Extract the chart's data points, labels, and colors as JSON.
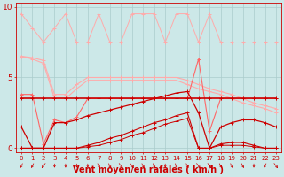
{
  "xlabel": "Vent moyen/en rafales ( km/h )",
  "hours": [
    0,
    1,
    2,
    3,
    4,
    5,
    6,
    7,
    8,
    9,
    10,
    11,
    12,
    13,
    14,
    15,
    16,
    17,
    18,
    19,
    20,
    21,
    22,
    23
  ],
  "bg_color": "#cce8e8",
  "grid_color": "#aacccc",
  "dark_red": "#cc0000",
  "light_red": "#ff6666",
  "pink_red": "#ffaaaa",
  "ylim": [
    -0.3,
    10.3
  ],
  "yticks": [
    0,
    5,
    10
  ],
  "series": [
    {
      "y": [
        6.5,
        6.4,
        6.2,
        3.8,
        3.8,
        4.5,
        5.0,
        5.0,
        5.0,
        5.0,
        5.0,
        5.0,
        5.0,
        5.0,
        5.0,
        4.8,
        4.5,
        4.2,
        4.0,
        3.8,
        3.5,
        3.2,
        3.0,
        2.8
      ],
      "color": "#ffaaaa",
      "lw": 0.8
    },
    {
      "y": [
        6.5,
        6.3,
        6.0,
        3.5,
        3.5,
        4.2,
        4.8,
        4.8,
        4.8,
        4.8,
        4.8,
        4.8,
        4.8,
        4.8,
        4.8,
        4.5,
        4.2,
        4.0,
        3.8,
        3.5,
        3.2,
        3.0,
        2.8,
        2.5
      ],
      "color": "#ffaaaa",
      "lw": 0.8
    },
    {
      "y": [
        3.8,
        3.8,
        0.3,
        2.0,
        1.8,
        2.2,
        3.5,
        3.5,
        3.5,
        3.5,
        3.5,
        3.5,
        3.5,
        3.5,
        3.5,
        3.5,
        6.3,
        1.2,
        3.5,
        3.5,
        3.5,
        3.5,
        3.5,
        3.5
      ],
      "color": "#ff6666",
      "lw": 0.8
    },
    {
      "y": [
        3.5,
        3.5,
        3.5,
        3.5,
        3.5,
        3.5,
        3.5,
        3.5,
        3.5,
        3.5,
        3.5,
        3.5,
        3.5,
        3.5,
        3.5,
        3.5,
        3.5,
        3.5,
        3.5,
        3.5,
        3.5,
        3.5,
        3.5,
        3.5
      ],
      "color": "#cc0000",
      "lw": 1.2
    },
    {
      "y": [
        1.5,
        0.0,
        0.0,
        1.8,
        1.8,
        2.0,
        2.3,
        2.5,
        2.7,
        2.9,
        3.1,
        3.3,
        3.5,
        3.7,
        3.9,
        4.0,
        2.5,
        0.0,
        1.5,
        1.8,
        2.0,
        2.0,
        1.8,
        1.5
      ],
      "color": "#cc0000",
      "lw": 0.9
    },
    {
      "y": [
        0.0,
        0.0,
        0.0,
        0.0,
        0.0,
        0.0,
        0.2,
        0.4,
        0.7,
        0.9,
        1.2,
        1.5,
        1.8,
        2.0,
        2.3,
        2.5,
        0.0,
        0.0,
        0.3,
        0.4,
        0.4,
        0.2,
        0.0,
        0.0
      ],
      "color": "#cc0000",
      "lw": 0.8
    },
    {
      "y": [
        0.0,
        0.0,
        0.0,
        0.0,
        0.0,
        0.0,
        0.1,
        0.2,
        0.4,
        0.6,
        0.9,
        1.1,
        1.4,
        1.7,
        1.9,
        2.1,
        0.0,
        0.0,
        0.2,
        0.2,
        0.2,
        0.1,
        0.0,
        0.0
      ],
      "color": "#cc0000",
      "lw": 0.7
    },
    {
      "y": [
        9.5,
        8.5,
        7.5,
        8.5,
        9.5,
        7.5,
        7.5,
        9.5,
        7.5,
        7.5,
        9.5,
        9.5,
        9.5,
        7.5,
        9.5,
        9.5,
        7.5,
        9.5,
        7.5,
        7.5,
        7.5,
        7.5,
        7.5,
        7.5
      ],
      "color": "#ffaaaa",
      "lw": 0.7
    }
  ],
  "arrow_angles_deg": [
    225,
    225,
    270,
    180,
    180,
    180,
    180,
    135,
    135,
    90,
    90,
    45,
    45,
    0,
    45,
    45,
    90,
    90,
    135,
    135,
    135,
    180,
    225,
    90
  ]
}
